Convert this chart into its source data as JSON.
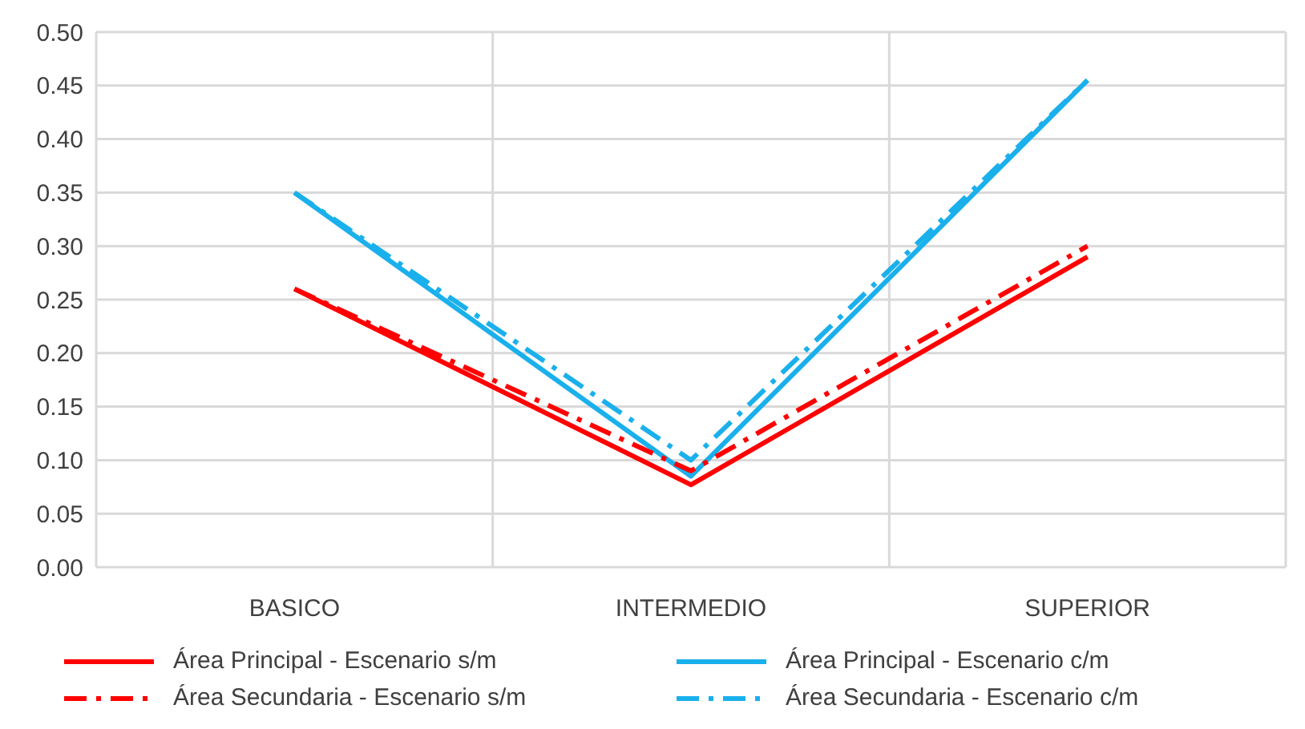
{
  "chart_data": {
    "type": "line",
    "categories": [
      "BASICO",
      "INTERMEDIO",
      "SUPERIOR"
    ],
    "series": [
      {
        "name": "Área Principal - Escenario s/m",
        "color": "#ff0000",
        "line_style": "solid",
        "values": [
          0.26,
          0.077,
          0.29
        ]
      },
      {
        "name": "Área Principal - Escenario c/m",
        "color": "#1ab0ec",
        "line_style": "solid",
        "values": [
          0.35,
          0.085,
          0.455
        ]
      },
      {
        "name": "Área Secundaria - Escenario s/m",
        "color": "#ff0000",
        "line_style": "dashed",
        "values": [
          0.26,
          0.09,
          0.3
        ]
      },
      {
        "name": "Área Secundaria - Escenario c/m",
        "color": "#1ab0ec",
        "line_style": "dashed",
        "values": [
          0.35,
          0.1,
          0.455
        ]
      }
    ],
    "ylim": [
      0,
      0.5
    ],
    "yticks": [
      {
        "value": 0,
        "label": "0.00"
      },
      {
        "value": 0.05,
        "label": "0.05"
      },
      {
        "value": 0.1,
        "label": "0.10"
      },
      {
        "value": 0.15,
        "label": "0.15"
      },
      {
        "value": 0.2,
        "label": "0.20"
      },
      {
        "value": 0.25,
        "label": "0.25"
      },
      {
        "value": 0.3,
        "label": "0.30"
      },
      {
        "value": 0.35,
        "label": "0.35"
      },
      {
        "value": 0.4,
        "label": "0.40"
      },
      {
        "value": 0.45,
        "label": "0.45"
      },
      {
        "value": 0.5,
        "label": "0.50"
      }
    ],
    "grid": true,
    "legend": "bottom",
    "marker": "none"
  }
}
